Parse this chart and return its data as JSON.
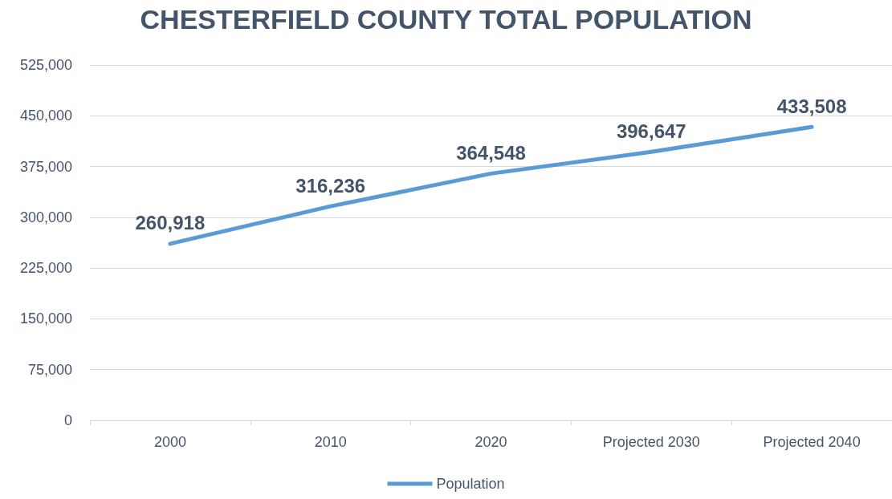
{
  "chart_data": {
    "type": "line",
    "title": "CHESTERFIELD COUNTY TOTAL POPULATION",
    "categories": [
      "2000",
      "2010",
      "2020",
      "Projected 2030",
      "Projected 2040"
    ],
    "series": [
      {
        "name": "Population",
        "color": "#5b9bd5",
        "values": [
          260918,
          316236,
          364548,
          396647,
          433508
        ]
      }
    ],
    "ylim": [
      0,
      525000
    ],
    "yticks": [
      {
        "value": 0,
        "label": "0"
      },
      {
        "value": 75000,
        "label": "75,000"
      },
      {
        "value": 150000,
        "label": "150,000"
      },
      {
        "value": 225000,
        "label": "225,000"
      },
      {
        "value": 300000,
        "label": "300,000"
      },
      {
        "value": 375000,
        "label": "375,000"
      },
      {
        "value": 450000,
        "label": "450,000"
      },
      {
        "value": 525000,
        "label": "525,000"
      }
    ],
    "grid": "y",
    "legend": "bottom",
    "marker": "none",
    "line_style": "solid",
    "value_labels": [
      "260,918",
      "316,236",
      "364,548",
      "396,647",
      "433,508"
    ]
  }
}
